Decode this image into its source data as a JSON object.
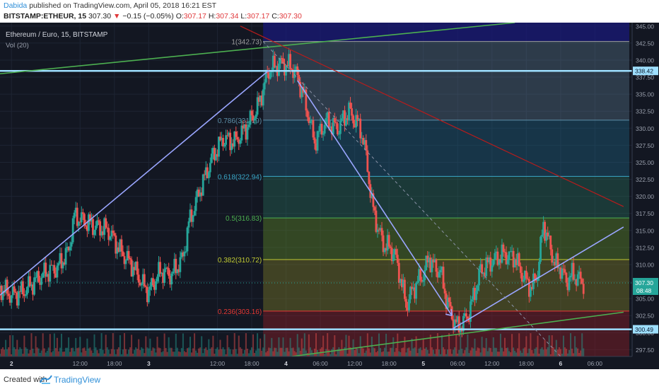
{
  "header": {
    "author": "Dabida",
    "published": "published on TradingView.com, April 05, 2018 16:21 EST",
    "symbol": "BITSTAMP:ETHEUR, 15",
    "last": "307.30",
    "change": "−0.15 (−0.05%)",
    "o_label": "O:",
    "o_value": "307.17",
    "h_label": "H:",
    "h_value": "307.34",
    "l_label": "L:",
    "l_value": "307.17",
    "c_label": "C:",
    "c_value": "307.30"
  },
  "legend": {
    "title": "Ethereum / Euro, 15, BITSTAMP",
    "volume": "Vol (20)"
  },
  "footer": {
    "created_with": "Created with",
    "brand": "TradingView"
  },
  "colors": {
    "background": "#131722",
    "up": "#26a69a",
    "down": "#ef5350",
    "trendline": "#9aa6ff",
    "horizontal_level": "#9edfff",
    "long_green_line": "#4caf50",
    "downtrend_red": "#b71c1c",
    "accent_blue": "#2f8fd8"
  },
  "chart_data": {
    "type": "candlestick",
    "title": "Ethereum / Euro, 15, BITSTAMP",
    "ylim": [
      296.5,
      345.5
    ],
    "y_ticks": [
      "297.50",
      "300.00",
      "302.50",
      "305.00",
      "307.50",
      "310.00",
      "312.50",
      "315.00",
      "317.50",
      "320.00",
      "322.50",
      "325.00",
      "327.50",
      "330.00",
      "332.50",
      "335.00",
      "337.50",
      "340.00",
      "342.50",
      "345.00"
    ],
    "x_ticks": [
      {
        "x": 0.0,
        "label": "2"
      },
      {
        "x": 12,
        "label": "12:00"
      },
      {
        "x": 18,
        "label": "18:00"
      },
      {
        "x": 24,
        "label": "3"
      },
      {
        "x": 36,
        "label": "12:00"
      },
      {
        "x": 42,
        "label": "18:00"
      },
      {
        "x": 48,
        "label": "4"
      },
      {
        "x": 54,
        "label": "06:00"
      },
      {
        "x": 60,
        "label": "12:00"
      },
      {
        "x": 66,
        "label": "18:00"
      },
      {
        "x": 72,
        "label": "5"
      },
      {
        "x": 78,
        "label": "06:00"
      },
      {
        "x": 84,
        "label": "12:00"
      },
      {
        "x": 90,
        "label": "18:00"
      },
      {
        "x": 96,
        "label": "6"
      },
      {
        "x": 102,
        "label": "06:00"
      }
    ],
    "x_unit": "hours since Apr 2 00:00",
    "price_path": [
      [
        -2,
        306.5
      ],
      [
        0,
        305.5
      ],
      [
        2,
        306.0
      ],
      [
        4,
        307.5
      ],
      [
        6,
        308.8
      ],
      [
        8,
        309.5
      ],
      [
        10,
        312.0
      ],
      [
        11,
        317.2
      ],
      [
        13,
        316.2
      ],
      [
        15,
        315.5
      ],
      [
        17,
        315.0
      ],
      [
        19,
        312.0
      ],
      [
        21,
        310.0
      ],
      [
        23,
        307.0
      ],
      [
        24,
        306.0
      ],
      [
        26,
        309.0
      ],
      [
        28,
        308.5
      ],
      [
        30,
        311.0
      ],
      [
        31,
        316.0
      ],
      [
        33,
        321.0
      ],
      [
        35,
        325.5
      ],
      [
        37,
        328.5
      ],
      [
        39,
        328.0
      ],
      [
        41,
        330.0
      ],
      [
        43,
        333.0
      ],
      [
        45,
        338.5
      ],
      [
        47,
        339.5
      ],
      [
        49,
        339.0
      ],
      [
        50,
        337.5
      ],
      [
        51,
        335.0
      ],
      [
        52,
        331.5
      ],
      [
        53,
        328.0
      ],
      [
        55,
        331.0
      ],
      [
        57,
        330.0
      ],
      [
        59,
        332.5
      ],
      [
        61,
        330.0
      ],
      [
        62,
        326.0
      ],
      [
        63,
        319.0
      ],
      [
        64,
        315.5
      ],
      [
        65,
        313.0
      ],
      [
        66,
        312.5
      ],
      [
        67,
        311.5
      ],
      [
        68,
        308.0
      ],
      [
        69,
        304.0
      ],
      [
        70,
        306.0
      ],
      [
        71,
        307.5
      ],
      [
        72,
        308.5
      ],
      [
        73,
        311.0
      ],
      [
        74,
        309.5
      ],
      [
        75,
        309.0
      ],
      [
        76,
        305.0
      ],
      [
        77,
        302.5
      ],
      [
        78,
        300.8
      ],
      [
        79,
        301.5
      ],
      [
        80,
        303.0
      ],
      [
        81,
        306.0
      ],
      [
        82,
        309.0
      ],
      [
        84,
        310.5
      ],
      [
        86,
        311.5
      ],
      [
        88,
        311.0
      ],
      [
        89,
        309.0
      ],
      [
        90,
        307.5
      ],
      [
        91,
        306.5
      ],
      [
        92,
        309.0
      ],
      [
        93,
        316.0
      ],
      [
        94,
        313.0
      ],
      [
        95,
        310.0
      ],
      [
        96,
        309.5
      ],
      [
        97,
        307.5
      ],
      [
        98,
        308.5
      ],
      [
        99,
        308.0
      ],
      [
        100,
        307.3
      ]
    ],
    "fib_retracement": {
      "levels": [
        {
          "label": "1(342.73)",
          "price": 342.73,
          "fill": "rgba(140,140,150,0.35)"
        },
        {
          "label": "0.786(331.19)",
          "price": 331.19,
          "fill": "rgba(95,125,150,0.35)"
        },
        {
          "label": "0.618(322.94)",
          "price": 322.94,
          "fill": "rgba(30,100,130,0.40)"
        },
        {
          "label": "0.5(316.83)",
          "price": 316.83,
          "fill": "rgba(40,110,90,0.40)"
        },
        {
          "label": "0.382(310.72)",
          "price": 310.72,
          "fill": "rgba(90,130,40,0.45)"
        },
        {
          "label": "0.236(303.16)",
          "price": 303.16,
          "fill": "rgba(120,120,40,0.45)"
        },
        {
          "label": "",
          "price": 296.5,
          "fill": "rgba(140,30,40,0.45)"
        }
      ],
      "x_start": 44,
      "x_end": 108
    },
    "horizontal_levels": [
      {
        "price": 338.42,
        "label": "338.42"
      },
      {
        "price": 300.49,
        "label": "300.49"
      }
    ],
    "current_price": {
      "price": 307.3,
      "label": "307.30",
      "countdown": "08:48"
    },
    "trendlines": [
      {
        "name": "uptrend-line",
        "from": [
          -2,
          305.5
        ],
        "to": [
          45,
          338.5
        ],
        "color": "#9aa6ff"
      },
      {
        "name": "downtrend-arrow",
        "from": [
          50,
          337.0
        ],
        "to": [
          77,
          302.5
        ],
        "color": "#9aa6ff"
      },
      {
        "name": "rising-support-line",
        "from": [
          77,
          300.5
        ],
        "to": [
          107,
          315.5
        ],
        "color": "#9aa6ff"
      },
      {
        "name": "long-green-line-top",
        "from": [
          -2,
          338.0
        ],
        "to": [
          88,
          345.5
        ],
        "color": "#4caf50"
      },
      {
        "name": "long-green-line-bottom",
        "from": [
          49,
          296.5
        ],
        "to": [
          107,
          303.0
        ],
        "color": "#4caf50"
      },
      {
        "name": "downtrend-red-line",
        "from": [
          40,
          345.0
        ],
        "to": [
          107,
          318.5
        ],
        "color": "#b71c1c"
      },
      {
        "name": "dashed-fib-diagonal",
        "from": [
          44,
          342.73
        ],
        "to": [
          96,
          296.5
        ],
        "color": "#8a93a8"
      }
    ]
  }
}
